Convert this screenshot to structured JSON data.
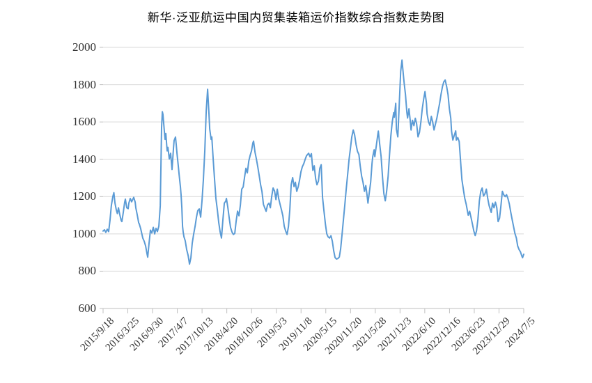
{
  "title": "新华·泛亚航运中国内贸集装箱运价指数综合指数走势图",
  "chart_data": {
    "type": "line",
    "title": "新华·泛亚航运中国内贸集装箱运价指数综合指数走势图",
    "legend": "none",
    "grid": true,
    "line_color": "#5B9BD5",
    "gridline_color": "#D9D9D9",
    "axis_color": "#BFBFBF",
    "tick_text_color": "#333333",
    "x_axis": {
      "unit": "weeks since first date",
      "total_weeks": 460,
      "tick_labels": [
        "2015/9/18",
        "2016/3/25",
        "2016/9/30",
        "2017/4/7",
        "2017/10/13",
        "2018/4/20",
        "2018/10/26",
        "2019/5/3",
        "2019/11/8",
        "2020/5/15",
        "2020/11/20",
        "2021/5/28",
        "2021/12/3",
        "2022/6/10",
        "2022/12/16",
        "2023/6/23",
        "2023/12/29",
        "2024/7/5"
      ]
    },
    "y_axis": {
      "min": 600,
      "max": 2000,
      "step": 200,
      "tick_labels": [
        "600",
        "800",
        "1000",
        "1200",
        "1400",
        "1600",
        "1800",
        "2000"
      ]
    },
    "points": [
      [
        0,
        1015
      ],
      [
        1.5,
        1022
      ],
      [
        3,
        1008
      ],
      [
        4.6,
        1025
      ],
      [
        6.1,
        1012
      ],
      [
        7.6,
        1075
      ],
      [
        9.1,
        1153
      ],
      [
        10.7,
        1200
      ],
      [
        11.8,
        1221
      ],
      [
        13,
        1165
      ],
      [
        14.5,
        1128
      ],
      [
        15.6,
        1109
      ],
      [
        16.8,
        1140
      ],
      [
        18.3,
        1103
      ],
      [
        19.8,
        1072
      ],
      [
        20.6,
        1066
      ],
      [
        22.1,
        1115
      ],
      [
        23.6,
        1170
      ],
      [
        24.4,
        1186
      ],
      [
        25.9,
        1140
      ],
      [
        27.4,
        1135
      ],
      [
        28.2,
        1165
      ],
      [
        29.7,
        1190
      ],
      [
        31.2,
        1172
      ],
      [
        33.5,
        1196
      ],
      [
        35.1,
        1170
      ],
      [
        35.8,
        1140
      ],
      [
        37.3,
        1103
      ],
      [
        38.9,
        1060
      ],
      [
        39.6,
        1053
      ],
      [
        41.1,
        1028
      ],
      [
        42.3,
        1003
      ],
      [
        43.4,
        978
      ],
      [
        45,
        960
      ],
      [
        46.5,
        935
      ],
      [
        48,
        895
      ],
      [
        48.8,
        875
      ],
      [
        50.3,
        950
      ],
      [
        51.8,
        1020
      ],
      [
        53.3,
        1005
      ],
      [
        54.9,
        1035
      ],
      [
        56.4,
        1000
      ],
      [
        57.9,
        1030
      ],
      [
        59.4,
        1012
      ],
      [
        61,
        1042
      ],
      [
        62.5,
        1150
      ],
      [
        64,
        1570
      ],
      [
        64.8,
        1655
      ],
      [
        65.5,
        1640
      ],
      [
        67.1,
        1545
      ],
      [
        67.8,
        1507
      ],
      [
        68.6,
        1538
      ],
      [
        70.1,
        1445
      ],
      [
        70.9,
        1464
      ],
      [
        72.4,
        1401
      ],
      [
        73.9,
        1432
      ],
      [
        75.4,
        1345
      ],
      [
        77,
        1460
      ],
      [
        77.7,
        1501
      ],
      [
        79.2,
        1519
      ],
      [
        80,
        1480
      ],
      [
        80.8,
        1432
      ],
      [
        82.3,
        1360
      ],
      [
        83.1,
        1321
      ],
      [
        84.6,
        1250
      ],
      [
        85.3,
        1209
      ],
      [
        86.1,
        1140
      ],
      [
        86.9,
        1041
      ],
      [
        87.6,
        1010
      ],
      [
        88.4,
        985
      ],
      [
        89.9,
        962
      ],
      [
        91.4,
        916
      ],
      [
        93,
        885
      ],
      [
        94.5,
        838
      ],
      [
        96,
        873
      ],
      [
        97.5,
        950
      ],
      [
        99.1,
        1000
      ],
      [
        100.6,
        1040
      ],
      [
        102.1,
        1090
      ],
      [
        103.6,
        1125
      ],
      [
        105.2,
        1134
      ],
      [
        106.7,
        1090
      ],
      [
        108.2,
        1180
      ],
      [
        109.7,
        1290
      ],
      [
        111.3,
        1450
      ],
      [
        112.8,
        1660
      ],
      [
        114.3,
        1775
      ],
      [
        115.8,
        1640
      ],
      [
        116.6,
        1563
      ],
      [
        118.1,
        1507
      ],
      [
        118.9,
        1520
      ],
      [
        120.4,
        1400
      ],
      [
        121.9,
        1290
      ],
      [
        123.4,
        1190
      ],
      [
        125,
        1128
      ],
      [
        126.5,
        1060
      ],
      [
        128,
        1010
      ],
      [
        129.5,
        978
      ],
      [
        131.1,
        1078
      ],
      [
        132.6,
        1165
      ],
      [
        134.1,
        1175
      ],
      [
        134.9,
        1190
      ],
      [
        136.4,
        1143
      ],
      [
        137.9,
        1085
      ],
      [
        139.4,
        1035
      ],
      [
        141,
        1010
      ],
      [
        142.5,
        997
      ],
      [
        144,
        1003
      ],
      [
        145.5,
        1066
      ],
      [
        147.1,
        1122
      ],
      [
        148.6,
        1097
      ],
      [
        150.1,
        1153
      ],
      [
        151.6,
        1240
      ],
      [
        153.2,
        1252
      ],
      [
        154.7,
        1303
      ],
      [
        156.2,
        1352
      ],
      [
        157.7,
        1327
      ],
      [
        159.3,
        1390
      ],
      [
        160.8,
        1420
      ],
      [
        162.3,
        1445
      ],
      [
        163.8,
        1488
      ],
      [
        164.6,
        1497
      ],
      [
        166.1,
        1439
      ],
      [
        167.6,
        1402
      ],
      [
        169.2,
        1358
      ],
      [
        170.7,
        1314
      ],
      [
        172.2,
        1265
      ],
      [
        173.7,
        1228
      ],
      [
        175.3,
        1159
      ],
      [
        176.8,
        1140
      ],
      [
        178.3,
        1121
      ],
      [
        179.8,
        1155
      ],
      [
        181.4,
        1165
      ],
      [
        182.9,
        1140
      ],
      [
        184.4,
        1200
      ],
      [
        185.9,
        1246
      ],
      [
        187.5,
        1230
      ],
      [
        189,
        1184
      ],
      [
        190.5,
        1240
      ],
      [
        192,
        1190
      ],
      [
        193.5,
        1159
      ],
      [
        195.1,
        1128
      ],
      [
        196.6,
        1097
      ],
      [
        198.1,
        1041
      ],
      [
        199.6,
        1016
      ],
      [
        201.2,
        997
      ],
      [
        202.7,
        1041
      ],
      [
        204.2,
        1128
      ],
      [
        205.7,
        1265
      ],
      [
        207.3,
        1302
      ],
      [
        208.8,
        1253
      ],
      [
        210.3,
        1277
      ],
      [
        211.8,
        1228
      ],
      [
        213.4,
        1253
      ],
      [
        214.9,
        1290
      ],
      [
        216.4,
        1333
      ],
      [
        217.9,
        1360
      ],
      [
        219.5,
        1377
      ],
      [
        221,
        1400
      ],
      [
        222.5,
        1420
      ],
      [
        224.8,
        1432
      ],
      [
        226.3,
        1413
      ],
      [
        227.8,
        1430
      ],
      [
        229.4,
        1340
      ],
      [
        230.9,
        1365
      ],
      [
        232.4,
        1296
      ],
      [
        233.9,
        1263
      ],
      [
        235.5,
        1283
      ],
      [
        237,
        1352
      ],
      [
        238.5,
        1371
      ],
      [
        240,
        1196
      ],
      [
        241.6,
        1121
      ],
      [
        243.1,
        1053
      ],
      [
        244.6,
        1000
      ],
      [
        246.1,
        984
      ],
      [
        247.7,
        978
      ],
      [
        249.2,
        990
      ],
      [
        250.7,
        960
      ],
      [
        252.2,
        910
      ],
      [
        253.7,
        873
      ],
      [
        255.3,
        865
      ],
      [
        256.8,
        868
      ],
      [
        258.3,
        876
      ],
      [
        259.8,
        920
      ],
      [
        261.4,
        1000
      ],
      [
        262.9,
        1080
      ],
      [
        264.4,
        1160
      ],
      [
        265.9,
        1240
      ],
      [
        267.5,
        1320
      ],
      [
        269,
        1400
      ],
      [
        270.5,
        1460
      ],
      [
        272,
        1520
      ],
      [
        273.6,
        1557
      ],
      [
        275.1,
        1530
      ],
      [
        276.6,
        1480
      ],
      [
        278.1,
        1443
      ],
      [
        279.7,
        1426
      ],
      [
        281.2,
        1365
      ],
      [
        282.7,
        1310
      ],
      [
        284.2,
        1277
      ],
      [
        285.8,
        1228
      ],
      [
        287.3,
        1259
      ],
      [
        288.8,
        1202
      ],
      [
        289.6,
        1165
      ],
      [
        291.1,
        1220
      ],
      [
        292.6,
        1277
      ],
      [
        294.1,
        1380
      ],
      [
        294.9,
        1414
      ],
      [
        296.4,
        1451
      ],
      [
        297.2,
        1414
      ],
      [
        298.7,
        1470
      ],
      [
        300.2,
        1526
      ],
      [
        301,
        1551
      ],
      [
        302.5,
        1480
      ],
      [
        304,
        1414
      ],
      [
        305.6,
        1300
      ],
      [
        307.1,
        1215
      ],
      [
        308.6,
        1177
      ],
      [
        310.1,
        1230
      ],
      [
        311.7,
        1310
      ],
      [
        313.2,
        1420
      ],
      [
        314.7,
        1526
      ],
      [
        316.2,
        1600
      ],
      [
        317.8,
        1650
      ],
      [
        318.5,
        1625
      ],
      [
        320,
        1700
      ],
      [
        320.8,
        1560
      ],
      [
        322.3,
        1520
      ],
      [
        323.9,
        1700
      ],
      [
        325.4,
        1870
      ],
      [
        326.9,
        1932
      ],
      [
        328.4,
        1850
      ],
      [
        329.2,
        1808
      ],
      [
        330.7,
        1746
      ],
      [
        332.2,
        1650
      ],
      [
        333,
        1621
      ],
      [
        334.5,
        1671
      ],
      [
        336,
        1600
      ],
      [
        336.8,
        1557
      ],
      [
        338.3,
        1609
      ],
      [
        339.9,
        1580
      ],
      [
        341.4,
        1620
      ],
      [
        342.9,
        1590
      ],
      [
        344.4,
        1520
      ],
      [
        346,
        1545
      ],
      [
        347.5,
        1600
      ],
      [
        349,
        1671
      ],
      [
        350.5,
        1720
      ],
      [
        352,
        1763
      ],
      [
        353.6,
        1700
      ],
      [
        354.3,
        1644
      ],
      [
        355.9,
        1600
      ],
      [
        357.4,
        1582
      ],
      [
        358.9,
        1630
      ],
      [
        360.4,
        1600
      ],
      [
        361.9,
        1557
      ],
      [
        363.5,
        1590
      ],
      [
        365,
        1621
      ],
      [
        366.5,
        1660
      ],
      [
        368,
        1700
      ],
      [
        369.6,
        1750
      ],
      [
        371.1,
        1790
      ],
      [
        372.6,
        1815
      ],
      [
        374.1,
        1825
      ],
      [
        375.7,
        1790
      ],
      [
        377.2,
        1746
      ],
      [
        378.7,
        1671
      ],
      [
        380.2,
        1621
      ],
      [
        381,
        1552
      ],
      [
        382.5,
        1503
      ],
      [
        384,
        1528
      ],
      [
        385.6,
        1552
      ],
      [
        386.3,
        1503
      ],
      [
        387.9,
        1516
      ],
      [
        389.4,
        1495
      ],
      [
        390.9,
        1390
      ],
      [
        392.4,
        1291
      ],
      [
        393.9,
        1241
      ],
      [
        395.5,
        1191
      ],
      [
        397,
        1160
      ],
      [
        397.7,
        1142
      ],
      [
        399.3,
        1100
      ],
      [
        400.8,
        1121
      ],
      [
        402.3,
        1090
      ],
      [
        403.9,
        1053
      ],
      [
        405.4,
        1016
      ],
      [
        406.9,
        991
      ],
      [
        408.4,
        1016
      ],
      [
        409.9,
        1078
      ],
      [
        411.5,
        1178
      ],
      [
        413,
        1228
      ],
      [
        414.5,
        1246
      ],
      [
        416,
        1203
      ],
      [
        417.6,
        1215
      ],
      [
        419.1,
        1240
      ],
      [
        420.6,
        1190
      ],
      [
        422.1,
        1153
      ],
      [
        424.4,
        1115
      ],
      [
        425.9,
        1165
      ],
      [
        427.5,
        1140
      ],
      [
        429,
        1170
      ],
      [
        430.5,
        1140
      ],
      [
        432,
        1066
      ],
      [
        433.6,
        1085
      ],
      [
        435.1,
        1153
      ],
      [
        436.6,
        1228
      ],
      [
        438.1,
        1210
      ],
      [
        439.7,
        1200
      ],
      [
        441.2,
        1210
      ],
      [
        442.7,
        1190
      ],
      [
        444.2,
        1160
      ],
      [
        445.8,
        1115
      ],
      [
        447.3,
        1078
      ],
      [
        448.8,
        1041
      ],
      [
        450.3,
        1003
      ],
      [
        451.9,
        978
      ],
      [
        453.4,
        935
      ],
      [
        454.9,
        916
      ],
      [
        456.4,
        903
      ],
      [
        458,
        880
      ],
      [
        458.7,
        872
      ],
      [
        460,
        891
      ]
    ]
  }
}
